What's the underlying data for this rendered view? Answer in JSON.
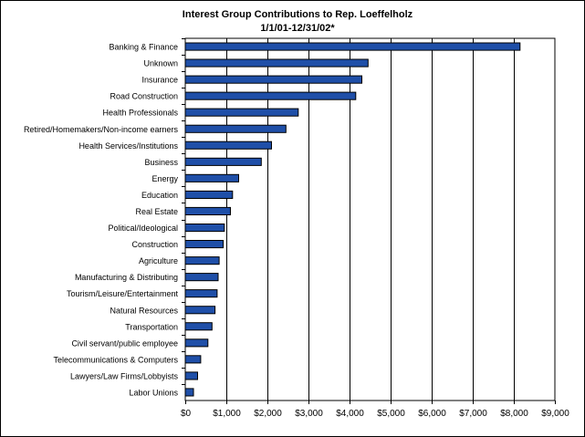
{
  "chart_data": {
    "type": "bar",
    "orientation": "horizontal",
    "title": "Interest Group Contributions to Rep. Loeffelholz",
    "subtitle": "1/1/01-12/31/02*",
    "xlabel": "",
    "ylabel": "",
    "xlim": [
      0,
      9000
    ],
    "x_ticks": [
      "$0",
      "$1,000",
      "$2,000",
      "$3,000",
      "$4,000",
      "$5,000",
      "$6,000",
      "$7,000",
      "$8,000",
      "$9,000"
    ],
    "grid": true,
    "legend": "none",
    "bar_color": "#1f4fa8",
    "categories": [
      "Banking & Finance",
      "Unknown",
      "Insurance",
      "Road Construction",
      "Health Professionals",
      "Retired/Homemakers/Non-income earners",
      "Health Services/Institutions",
      "Business",
      "Energy",
      "Education",
      "Real Estate",
      "Political/Ideological",
      "Construction",
      "Agriculture",
      "Manufacturing & Distributing",
      "Tourism/Leisure/Entertainment",
      "Natural Resources",
      "Transportation",
      "Civil servant/public employee",
      "Telecommunications & Computers",
      "Lawyers/Law Firms/Lobbyists",
      "Labor Unions"
    ],
    "values": [
      8150,
      4450,
      4300,
      4150,
      2750,
      2450,
      2100,
      1850,
      1300,
      1150,
      1100,
      950,
      925,
      825,
      800,
      775,
      725,
      650,
      550,
      375,
      300,
      200
    ]
  }
}
